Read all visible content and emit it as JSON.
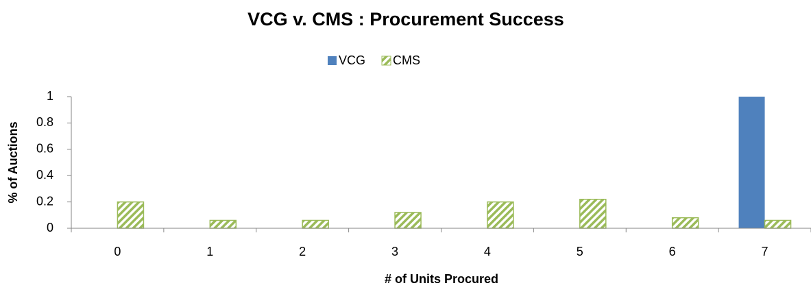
{
  "chart_data": {
    "type": "bar",
    "title": "VCG v. CMS : Procurement Success",
    "x_label": "# of Units Procured",
    "y_label": "% of Auctions",
    "categories": [
      "0",
      "1",
      "2",
      "3",
      "4",
      "5",
      "6",
      "7"
    ],
    "series": [
      {
        "name": "VCG",
        "color": "#4f81bd",
        "values": [
          0,
          0,
          0,
          0,
          0,
          0,
          0,
          1
        ]
      },
      {
        "name": "CMS",
        "color": "#9bbb59",
        "pattern": "diagonal-hatch",
        "values": [
          0.2,
          0.06,
          0.06,
          0.12,
          0.2,
          0.22,
          0.08,
          0.06
        ]
      }
    ],
    "ylim": [
      0,
      1
    ],
    "yticks": [
      0,
      0.2,
      0.4,
      0.6,
      0.8,
      1
    ],
    "grid": false,
    "legend": "top"
  }
}
